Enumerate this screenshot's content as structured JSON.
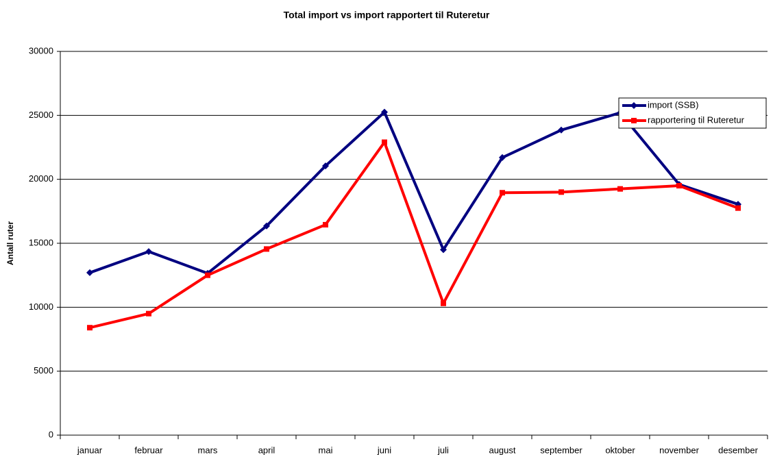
{
  "chart_data": {
    "type": "line",
    "title": "Total import vs import rapportert til Ruteretur",
    "ylabel": "Antall ruter",
    "categories": [
      "januar",
      "februar",
      "mars",
      "april",
      "mai",
      "juni",
      "juli",
      "august",
      "september",
      "oktober",
      "november",
      "desember"
    ],
    "series": [
      {
        "name": "import (SSB)",
        "color": "#000080",
        "marker": "diamond",
        "values": [
          12700,
          14350,
          12650,
          16350,
          21050,
          25250,
          14500,
          21700,
          23850,
          25200,
          19600,
          18050
        ]
      },
      {
        "name": "rapportering til Ruteretur",
        "color": "#ff0000",
        "marker": "square",
        "values": [
          8400,
          9500,
          12500,
          14550,
          16450,
          22900,
          10300,
          18950,
          19000,
          19250,
          19500,
          17750
        ]
      }
    ],
    "ylim": [
      0,
      30000
    ],
    "yticks": [
      0,
      5000,
      10000,
      15000,
      20000,
      25000,
      30000
    ],
    "grid": true,
    "legend": "top-right"
  }
}
